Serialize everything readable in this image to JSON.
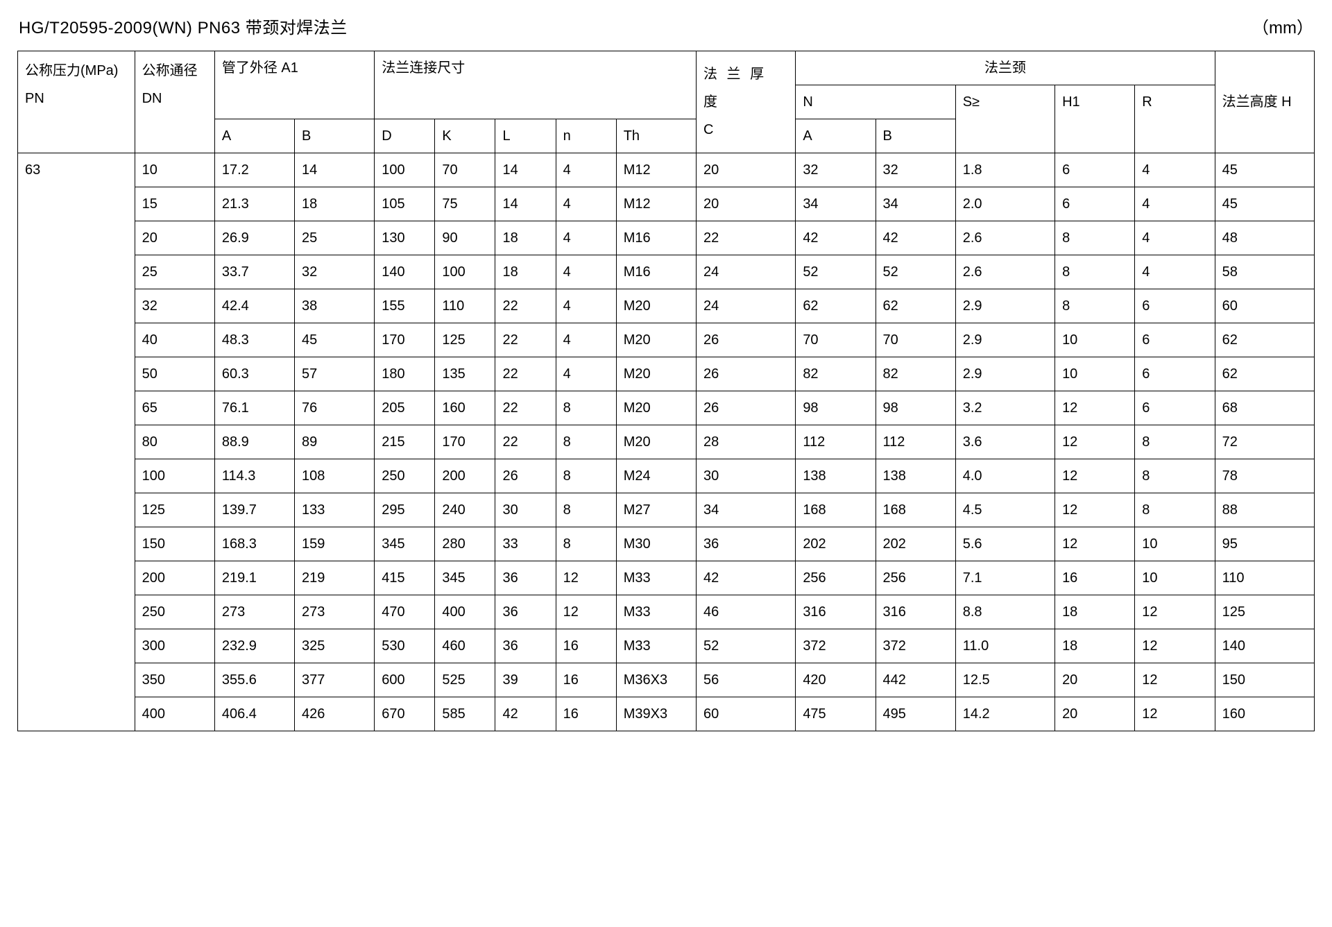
{
  "title_left": "HG/T20595-2009(WN)   PN63 带颈对焊法兰",
  "title_right": "（mm）",
  "headers": {
    "pn_line1": "公称压力(MPa)",
    "pn_line2": "PN",
    "dn_line1": "公称通径",
    "dn_line2": "DN",
    "a1_group": "管了外径 A1",
    "a1_a": "A",
    "a1_b": "B",
    "conn_group": "法兰连接尺寸",
    "d": "D",
    "k": "K",
    "l": "L",
    "n": "n",
    "th": "Th",
    "c_line1": "法 兰 厚",
    "c_line2": "度",
    "c_line3": "C",
    "neck_group": "法兰颈",
    "neck_n": "N",
    "neck_a": "A",
    "neck_b": "B",
    "neck_s": "S≥",
    "neck_h1": "H1",
    "neck_r": "R",
    "height_h": "法兰高度 H"
  },
  "pn_value": "63",
  "rows": [
    {
      "dn": "10",
      "a": "17.2",
      "b": "14",
      "d": "100",
      "k": "70",
      "l": "14",
      "n": "4",
      "th": "M12",
      "c": "20",
      "na": "32",
      "nb": "32",
      "s": "1.8",
      "h1": "6",
      "r": "4",
      "h": "45"
    },
    {
      "dn": "15",
      "a": "21.3",
      "b": "18",
      "d": "105",
      "k": "75",
      "l": "14",
      "n": "4",
      "th": "M12",
      "c": "20",
      "na": "34",
      "nb": "34",
      "s": "2.0",
      "h1": "6",
      "r": "4",
      "h": "45"
    },
    {
      "dn": "20",
      "a": "26.9",
      "b": "25",
      "d": "130",
      "k": "90",
      "l": "18",
      "n": "4",
      "th": "M16",
      "c": "22",
      "na": "42",
      "nb": "42",
      "s": "2.6",
      "h1": "8",
      "r": "4",
      "h": "48"
    },
    {
      "dn": "25",
      "a": "33.7",
      "b": "32",
      "d": "140",
      "k": "100",
      "l": "18",
      "n": "4",
      "th": "M16",
      "c": "24",
      "na": "52",
      "nb": "52",
      "s": "2.6",
      "h1": "8",
      "r": "4",
      "h": "58"
    },
    {
      "dn": "32",
      "a": "42.4",
      "b": "38",
      "d": "155",
      "k": "110",
      "l": "22",
      "n": "4",
      "th": "M20",
      "c": "24",
      "na": "62",
      "nb": "62",
      "s": "2.9",
      "h1": "8",
      "r": "6",
      "h": "60"
    },
    {
      "dn": "40",
      "a": "48.3",
      "b": "45",
      "d": "170",
      "k": "125",
      "l": "22",
      "n": "4",
      "th": "M20",
      "c": "26",
      "na": "70",
      "nb": "70",
      "s": "2.9",
      "h1": "10",
      "r": "6",
      "h": "62"
    },
    {
      "dn": "50",
      "a": "60.3",
      "b": "57",
      "d": "180",
      "k": "135",
      "l": "22",
      "n": "4",
      "th": "M20",
      "c": "26",
      "na": "82",
      "nb": "82",
      "s": "2.9",
      "h1": "10",
      "r": "6",
      "h": "62"
    },
    {
      "dn": "65",
      "a": "76.1",
      "b": "76",
      "d": "205",
      "k": "160",
      "l": "22",
      "n": "8",
      "th": "M20",
      "c": "26",
      "na": "98",
      "nb": "98",
      "s": "3.2",
      "h1": "12",
      "r": "6",
      "h": "68"
    },
    {
      "dn": "80",
      "a": "88.9",
      "b": "89",
      "d": "215",
      "k": "170",
      "l": "22",
      "n": "8",
      "th": "M20",
      "c": "28",
      "na": "112",
      "nb": "112",
      "s": "3.6",
      "h1": "12",
      "r": "8",
      "h": "72"
    },
    {
      "dn": "100",
      "a": "114.3",
      "b": "108",
      "d": "250",
      "k": "200",
      "l": "26",
      "n": "8",
      "th": "M24",
      "c": "30",
      "na": "138",
      "nb": "138",
      "s": "4.0",
      "h1": "12",
      "r": "8",
      "h": "78"
    },
    {
      "dn": "125",
      "a": "139.7",
      "b": "133",
      "d": "295",
      "k": "240",
      "l": "30",
      "n": "8",
      "th": "M27",
      "c": "34",
      "na": "168",
      "nb": "168",
      "s": "4.5",
      "h1": "12",
      "r": "8",
      "h": "88"
    },
    {
      "dn": "150",
      "a": "168.3",
      "b": "159",
      "d": "345",
      "k": "280",
      "l": "33",
      "n": "8",
      "th": "M30",
      "c": "36",
      "na": "202",
      "nb": "202",
      "s": "5.6",
      "h1": "12",
      "r": "10",
      "h": "95"
    },
    {
      "dn": "200",
      "a": "219.1",
      "b": "219",
      "d": "415",
      "k": "345",
      "l": "36",
      "n": "12",
      "th": "M33",
      "c": "42",
      "na": "256",
      "nb": "256",
      "s": "7.1",
      "h1": "16",
      "r": "10",
      "h": "110"
    },
    {
      "dn": "250",
      "a": "273",
      "b": "273",
      "d": "470",
      "k": "400",
      "l": "36",
      "n": "12",
      "th": "M33",
      "c": "46",
      "na": "316",
      "nb": "316",
      "s": "8.8",
      "h1": "18",
      "r": "12",
      "h": "125"
    },
    {
      "dn": "300",
      "a": "232.9",
      "b": "325",
      "d": "530",
      "k": "460",
      "l": "36",
      "n": "16",
      "th": "M33",
      "c": "52",
      "na": "372",
      "nb": "372",
      "s": "11.0",
      "h1": "18",
      "r": "12",
      "h": "140"
    },
    {
      "dn": "350",
      "a": "355.6",
      "b": "377",
      "d": "600",
      "k": "525",
      "l": "39",
      "n": "16",
      "th": "M36X3",
      "c": "56",
      "na": "420",
      "nb": "442",
      "s": "12.5",
      "h1": "20",
      "r": "12",
      "h": "150"
    },
    {
      "dn": "400",
      "a": "406.4",
      "b": "426",
      "d": "670",
      "k": "585",
      "l": "42",
      "n": "16",
      "th": "M39X3",
      "c": "60",
      "na": "475",
      "nb": "495",
      "s": "14.2",
      "h1": "20",
      "r": "12",
      "h": "160"
    }
  ]
}
